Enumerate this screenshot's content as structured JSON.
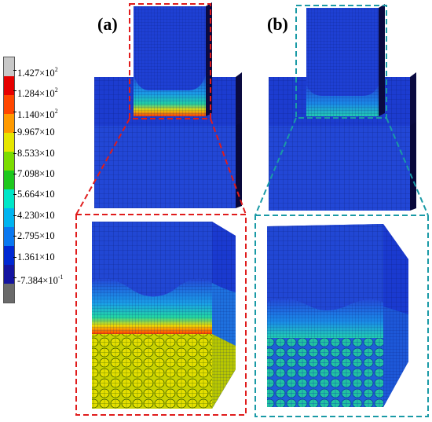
{
  "panels": {
    "a_label": "(a)",
    "b_label": "(b)"
  },
  "legend": {
    "entries": [
      {
        "mantissa": "1.427×10",
        "exp": "2"
      },
      {
        "mantissa": "1.284×10",
        "exp": "2"
      },
      {
        "mantissa": "1.140×10",
        "exp": "2"
      },
      {
        "mantissa": "9.967×10",
        "exp": ""
      },
      {
        "mantissa": "8.533×10",
        "exp": ""
      },
      {
        "mantissa": "7.098×10",
        "exp": ""
      },
      {
        "mantissa": "5.664×10",
        "exp": ""
      },
      {
        "mantissa": "4.230×10",
        "exp": ""
      },
      {
        "mantissa": "2.795×10",
        "exp": ""
      },
      {
        "mantissa": "1.361×10",
        "exp": ""
      },
      {
        "mantissa": "-7.384×10",
        "exp": "-1"
      }
    ],
    "colors": [
      "#c8c8c8",
      "#e60000",
      "#ff4600",
      "#ff9a00",
      "#e6e600",
      "#7cdc00",
      "#1ec81e",
      "#00e6c8",
      "#00b4f0",
      "#0a78f0",
      "#0028d2",
      "#1414a0",
      "#6a6a6a"
    ]
  },
  "colors": {
    "box_a": "#e01c1c",
    "box_b": "#1a9aa6",
    "model_dark": "#0d1f8f",
    "model_mid": "#1838c8",
    "model_light": "#2a52e0"
  }
}
